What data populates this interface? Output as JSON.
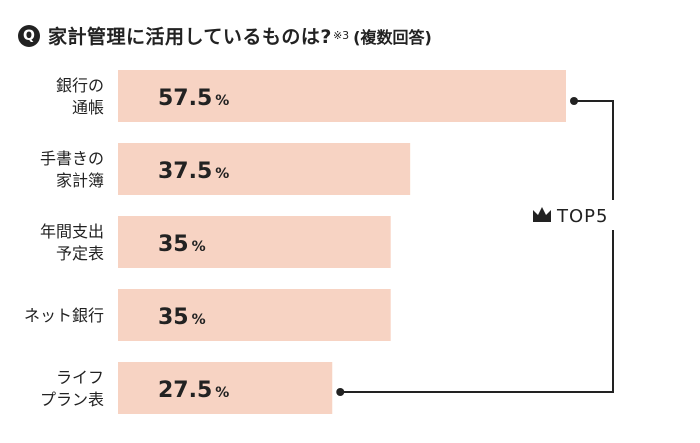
{
  "title": {
    "badge": "Q",
    "text": "家計管理に活用しているものは?",
    "note": "※3",
    "sub": "(複数回答)"
  },
  "top_label": "TOP5",
  "colors": {
    "bar": "#f7d3c3",
    "text": "#222222",
    "bracket": "#222222"
  },
  "chart_data": {
    "type": "bar",
    "orientation": "horizontal",
    "categories": [
      [
        "銀行の",
        "通帳"
      ],
      [
        "手書きの",
        "家計簿"
      ],
      [
        "年間支出",
        "予定表"
      ],
      [
        "ネット銀行"
      ],
      [
        "ライフ",
        "プラン表"
      ]
    ],
    "values": [
      57.5,
      37.5,
      35,
      35,
      27.5
    ],
    "value_labels": [
      "57.5",
      "37.5",
      "35",
      "35",
      "27.5"
    ],
    "unit": "%",
    "xlim": [
      0,
      57.5
    ],
    "grid": false,
    "legend": "none"
  }
}
